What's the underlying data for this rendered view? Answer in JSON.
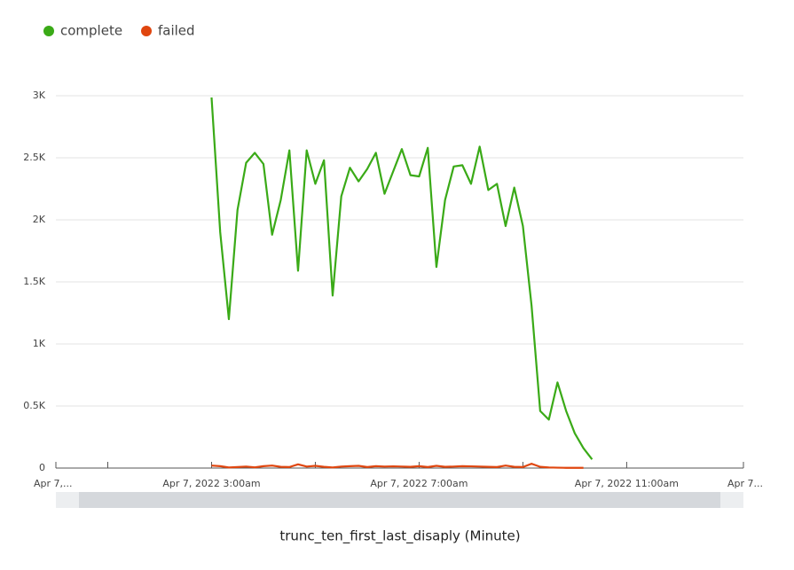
{
  "chart_data": {
    "type": "line",
    "x_label": "trunc_ten_first_last_disaply (Minute)",
    "x": [
      "2022-04-07T03:00",
      "2022-04-07T03:10",
      "2022-04-07T03:20",
      "2022-04-07T03:30",
      "2022-04-07T03:40",
      "2022-04-07T03:50",
      "2022-04-07T04:00",
      "2022-04-07T04:10",
      "2022-04-07T04:20",
      "2022-04-07T04:30",
      "2022-04-07T04:40",
      "2022-04-07T04:50",
      "2022-04-07T05:00",
      "2022-04-07T05:10",
      "2022-04-07T05:20",
      "2022-04-07T05:30",
      "2022-04-07T05:40",
      "2022-04-07T05:50",
      "2022-04-07T06:00",
      "2022-04-07T06:10",
      "2022-04-07T06:20",
      "2022-04-07T06:30",
      "2022-04-07T06:40",
      "2022-04-07T06:50",
      "2022-04-07T07:00",
      "2022-04-07T07:10",
      "2022-04-07T07:20",
      "2022-04-07T07:30",
      "2022-04-07T07:40",
      "2022-04-07T07:50",
      "2022-04-07T08:00",
      "2022-04-07T08:10",
      "2022-04-07T08:20",
      "2022-04-07T08:30",
      "2022-04-07T08:40",
      "2022-04-07T08:50",
      "2022-04-07T09:00",
      "2022-04-07T09:10",
      "2022-04-07T09:20",
      "2022-04-07T09:30",
      "2022-04-07T09:40",
      "2022-04-07T09:50",
      "2022-04-07T10:00",
      "2022-04-07T10:10",
      "2022-04-07T10:20"
    ],
    "series": [
      {
        "name": "complete",
        "color": "#3aaa17",
        "values": [
          2986,
          1900,
          1200,
          2080,
          2460,
          2540,
          2450,
          1880,
          2160,
          2560,
          1590,
          2560,
          2290,
          2480,
          1390,
          2190,
          2420,
          2310,
          2410,
          2540,
          2210,
          2390,
          2570,
          2360,
          2350,
          2580,
          1620,
          2160,
          2430,
          2440,
          2290,
          2590,
          2240,
          2290,
          1950,
          2260,
          1950,
          1310,
          460,
          390,
          690,
          460,
          280,
          160,
          70
        ]
      },
      {
        "name": "failed",
        "color": "#e0460f",
        "values": [
          20,
          15,
          5,
          8,
          12,
          6,
          15,
          20,
          10,
          8,
          30,
          12,
          18,
          10,
          5,
          12,
          15,
          18,
          8,
          15,
          12,
          14,
          12,
          10,
          15,
          8,
          18,
          10,
          12,
          15,
          14,
          12,
          10,
          8,
          20,
          10,
          8,
          35,
          10,
          5,
          3,
          2,
          2,
          2,
          null
        ]
      }
    ],
    "xlim": [
      "2022-04-07T00:00",
      "2022-04-07T13:15"
    ],
    "xticks": [
      {
        "value": "2022-04-07T00:00",
        "label": "Apr 7,..."
      },
      {
        "value": "2022-04-07T03:00",
        "label": "Apr 7, 2022 3:00am"
      },
      {
        "value": "2022-04-07T07:00",
        "label": "Apr 7, 2022 7:00am"
      },
      {
        "value": "2022-04-07T11:00",
        "label": "Apr 7, 2022 11:00am"
      },
      {
        "value": "2022-04-07T13:15",
        "label": "Apr 7..."
      }
    ],
    "xminorticks": [
      "2022-04-07T01:00",
      "2022-04-07T05:00",
      "2022-04-07T09:00"
    ],
    "ylim": [
      0,
      3000
    ],
    "yticks": [
      0,
      {
        "value": 500,
        "label": "0.5K"
      },
      {
        "value": 1000,
        "label": "1K"
      },
      {
        "value": 1500,
        "label": "1.5K"
      },
      {
        "value": 2000,
        "label": "2K"
      },
      {
        "value": 2500,
        "label": "2.5K"
      },
      {
        "value": 3000,
        "label": "3K"
      }
    ],
    "grid": true
  }
}
